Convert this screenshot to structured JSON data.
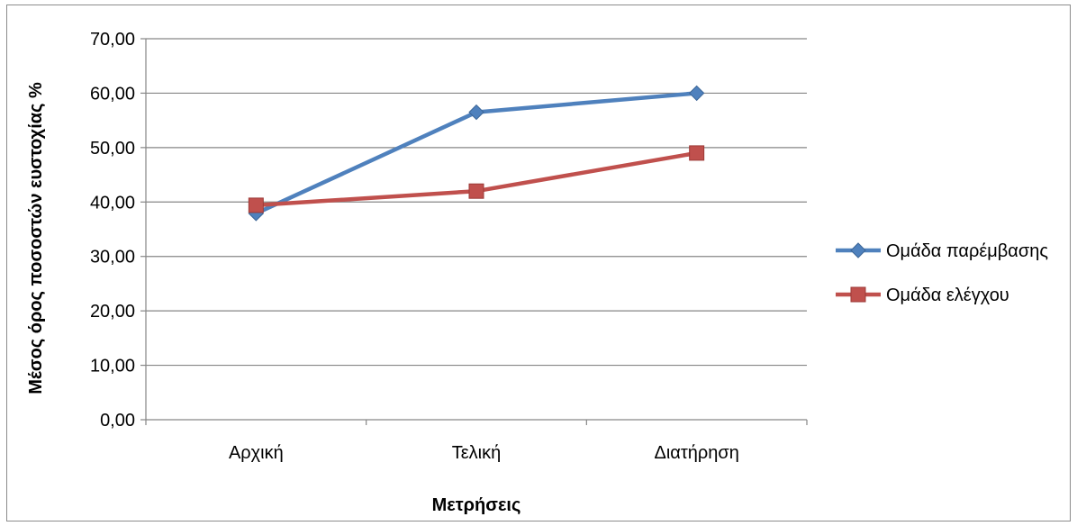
{
  "chart_data": {
    "type": "line",
    "categories": [
      "Αρχική",
      "Τελική",
      "Διατήρηση"
    ],
    "series": [
      {
        "name": "Ομάδα παρέμβασης",
        "values": [
          37.9,
          56.5,
          60.0
        ],
        "color": "#4f81bd",
        "marker": "diamond"
      },
      {
        "name": "Ομάδα ελέγχου",
        "values": [
          39.4,
          42.0,
          49.0
        ],
        "color": "#c0504d",
        "marker": "square"
      }
    ],
    "y_ticks": [
      "0,00",
      "10,00",
      "20,00",
      "30,00",
      "40,00",
      "50,00",
      "60,00",
      "70,00"
    ],
    "ylim": [
      0,
      70
    ],
    "xlabel": "Μετρήσεις",
    "ylabel": "Μέσος όρος ποσοστών ευστοχίας %",
    "grid": true,
    "legend_position": "right"
  }
}
